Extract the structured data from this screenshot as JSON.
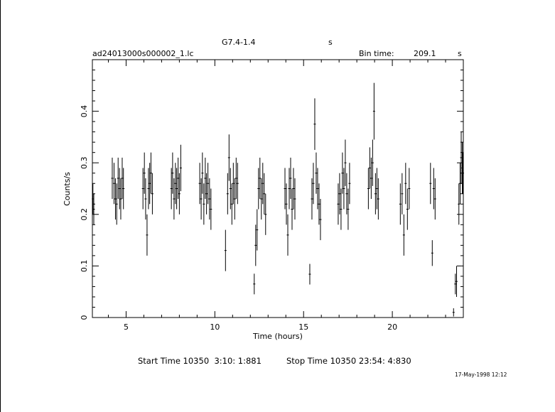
{
  "header": {
    "title": "G7.4-1.4",
    "title_unit": "s",
    "file": "ad24013000s000002_1.lc",
    "bin_label": "Bin time:",
    "bin_value": "209.1",
    "bin_unit": "s"
  },
  "footer": {
    "start": "Start Time 10350  3:10: 1:881",
    "stop": "Stop Time 10350 23:54: 4:830",
    "date": "17-May-1998 12:12"
  },
  "chart_data": {
    "type": "scatter",
    "title": "G7.4-1.4",
    "xlabel": "Time (hours)",
    "ylabel": "Counts/s",
    "xlim": [
      3.1,
      24.0
    ],
    "ylim": [
      0,
      0.5
    ],
    "xticks": [
      5,
      10,
      15,
      20
    ],
    "yticks": [
      0,
      0.1,
      0.2,
      0.3,
      0.4
    ],
    "xtick_labels": [
      "5",
      "10",
      "15",
      "20"
    ],
    "ytick_labels": [
      "0",
      "0.1",
      "0.2",
      "0.3",
      "0.4"
    ],
    "grid": false,
    "error_bars": true,
    "points": [
      {
        "x": 3.13,
        "y": 0.23,
        "err": 0.03
      },
      {
        "x": 3.18,
        "y": 0.21,
        "err": 0.03
      },
      {
        "x": 4.22,
        "y": 0.27,
        "err": 0.04
      },
      {
        "x": 4.32,
        "y": 0.26,
        "err": 0.04
      },
      {
        "x": 4.4,
        "y": 0.23,
        "err": 0.04
      },
      {
        "x": 4.47,
        "y": 0.22,
        "err": 0.04
      },
      {
        "x": 4.55,
        "y": 0.27,
        "err": 0.04
      },
      {
        "x": 4.63,
        "y": 0.25,
        "err": 0.04
      },
      {
        "x": 4.7,
        "y": 0.23,
        "err": 0.04
      },
      {
        "x": 4.78,
        "y": 0.27,
        "err": 0.04
      },
      {
        "x": 4.85,
        "y": 0.25,
        "err": 0.04
      },
      {
        "x": 5.95,
        "y": 0.25,
        "err": 0.04
      },
      {
        "x": 6.03,
        "y": 0.28,
        "err": 0.04
      },
      {
        "x": 6.1,
        "y": 0.23,
        "err": 0.04
      },
      {
        "x": 6.18,
        "y": 0.16,
        "err": 0.04
      },
      {
        "x": 6.26,
        "y": 0.25,
        "err": 0.04
      },
      {
        "x": 6.33,
        "y": 0.26,
        "err": 0.04
      },
      {
        "x": 6.4,
        "y": 0.28,
        "err": 0.04
      },
      {
        "x": 6.48,
        "y": 0.24,
        "err": 0.04
      },
      {
        "x": 7.55,
        "y": 0.25,
        "err": 0.04
      },
      {
        "x": 7.62,
        "y": 0.28,
        "err": 0.04
      },
      {
        "x": 7.7,
        "y": 0.23,
        "err": 0.04
      },
      {
        "x": 7.78,
        "y": 0.26,
        "err": 0.04
      },
      {
        "x": 7.85,
        "y": 0.25,
        "err": 0.04
      },
      {
        "x": 7.93,
        "y": 0.27,
        "err": 0.04
      },
      {
        "x": 8.0,
        "y": 0.24,
        "err": 0.04
      },
      {
        "x": 8.08,
        "y": 0.29,
        "err": 0.045
      },
      {
        "x": 9.15,
        "y": 0.26,
        "err": 0.04
      },
      {
        "x": 9.23,
        "y": 0.23,
        "err": 0.04
      },
      {
        "x": 9.3,
        "y": 0.28,
        "err": 0.04
      },
      {
        "x": 9.38,
        "y": 0.22,
        "err": 0.04
      },
      {
        "x": 9.46,
        "y": 0.27,
        "err": 0.04
      },
      {
        "x": 9.53,
        "y": 0.24,
        "err": 0.04
      },
      {
        "x": 9.61,
        "y": 0.26,
        "err": 0.04
      },
      {
        "x": 9.7,
        "y": 0.23,
        "err": 0.04
      },
      {
        "x": 9.78,
        "y": 0.21,
        "err": 0.04
      },
      {
        "x": 10.6,
        "y": 0.13,
        "err": 0.04
      },
      {
        "x": 10.72,
        "y": 0.24,
        "err": 0.04
      },
      {
        "x": 10.8,
        "y": 0.31,
        "err": 0.045
      },
      {
        "x": 10.88,
        "y": 0.25,
        "err": 0.04
      },
      {
        "x": 10.96,
        "y": 0.22,
        "err": 0.04
      },
      {
        "x": 11.04,
        "y": 0.26,
        "err": 0.04
      },
      {
        "x": 11.12,
        "y": 0.23,
        "err": 0.04
      },
      {
        "x": 11.2,
        "y": 0.27,
        "err": 0.04
      },
      {
        "x": 11.28,
        "y": 0.26,
        "err": 0.04
      },
      {
        "x": 12.22,
        "y": 0.065,
        "err": 0.02
      },
      {
        "x": 12.3,
        "y": 0.14,
        "err": 0.04
      },
      {
        "x": 12.38,
        "y": 0.17,
        "err": 0.04
      },
      {
        "x": 12.46,
        "y": 0.25,
        "err": 0.04
      },
      {
        "x": 12.54,
        "y": 0.27,
        "err": 0.04
      },
      {
        "x": 12.62,
        "y": 0.23,
        "err": 0.04
      },
      {
        "x": 12.7,
        "y": 0.26,
        "err": 0.04
      },
      {
        "x": 12.78,
        "y": 0.24,
        "err": 0.04
      },
      {
        "x": 12.86,
        "y": 0.2,
        "err": 0.04
      },
      {
        "x": 13.95,
        "y": 0.25,
        "err": 0.04
      },
      {
        "x": 14.03,
        "y": 0.22,
        "err": 0.04
      },
      {
        "x": 14.11,
        "y": 0.16,
        "err": 0.04
      },
      {
        "x": 14.19,
        "y": 0.25,
        "err": 0.04
      },
      {
        "x": 14.27,
        "y": 0.27,
        "err": 0.04
      },
      {
        "x": 14.35,
        "y": 0.21,
        "err": 0.04
      },
      {
        "x": 14.43,
        "y": 0.25,
        "err": 0.04
      },
      {
        "x": 14.51,
        "y": 0.23,
        "err": 0.04
      },
      {
        "x": 15.35,
        "y": 0.084,
        "err": 0.02
      },
      {
        "x": 15.47,
        "y": 0.23,
        "err": 0.04
      },
      {
        "x": 15.55,
        "y": 0.26,
        "err": 0.04
      },
      {
        "x": 15.63,
        "y": 0.375,
        "err": 0.05
      },
      {
        "x": 15.71,
        "y": 0.28,
        "err": 0.04
      },
      {
        "x": 15.79,
        "y": 0.25,
        "err": 0.04
      },
      {
        "x": 15.87,
        "y": 0.22,
        "err": 0.04
      },
      {
        "x": 15.95,
        "y": 0.19,
        "err": 0.04
      },
      {
        "x": 16.95,
        "y": 0.22,
        "err": 0.04
      },
      {
        "x": 17.03,
        "y": 0.24,
        "err": 0.04
      },
      {
        "x": 17.11,
        "y": 0.21,
        "err": 0.04
      },
      {
        "x": 17.19,
        "y": 0.28,
        "err": 0.04
      },
      {
        "x": 17.27,
        "y": 0.25,
        "err": 0.04
      },
      {
        "x": 17.35,
        "y": 0.3,
        "err": 0.045
      },
      {
        "x": 17.43,
        "y": 0.24,
        "err": 0.04
      },
      {
        "x": 17.51,
        "y": 0.21,
        "err": 0.04
      },
      {
        "x": 17.59,
        "y": 0.26,
        "err": 0.04
      },
      {
        "x": 18.65,
        "y": 0.25,
        "err": 0.04
      },
      {
        "x": 18.73,
        "y": 0.29,
        "err": 0.04
      },
      {
        "x": 18.81,
        "y": 0.27,
        "err": 0.04
      },
      {
        "x": 18.89,
        "y": 0.3,
        "err": 0.045
      },
      {
        "x": 18.97,
        "y": 0.4,
        "err": 0.055
      },
      {
        "x": 19.05,
        "y": 0.24,
        "err": 0.04
      },
      {
        "x": 19.13,
        "y": 0.25,
        "err": 0.04
      },
      {
        "x": 19.21,
        "y": 0.23,
        "err": 0.04
      },
      {
        "x": 20.45,
        "y": 0.22,
        "err": 0.04
      },
      {
        "x": 20.55,
        "y": 0.24,
        "err": 0.04
      },
      {
        "x": 20.65,
        "y": 0.16,
        "err": 0.04
      },
      {
        "x": 20.75,
        "y": 0.26,
        "err": 0.04
      },
      {
        "x": 20.85,
        "y": 0.21,
        "err": 0.04
      },
      {
        "x": 20.95,
        "y": 0.25,
        "err": 0.04
      },
      {
        "x": 22.15,
        "y": 0.26,
        "err": 0.04
      },
      {
        "x": 22.25,
        "y": 0.125,
        "err": 0.025
      },
      {
        "x": 22.33,
        "y": 0.25,
        "err": 0.04
      },
      {
        "x": 22.41,
        "y": 0.23,
        "err": 0.04
      },
      {
        "x": 23.45,
        "y": 0.01,
        "err": 0.008
      },
      {
        "x": 23.55,
        "y": 0.065,
        "err": 0.02
      },
      {
        "x": 23.62,
        "y": 0.07,
        "err": 0.03
      },
      {
        "x": 23.75,
        "y": 0.22,
        "err": 0.04
      },
      {
        "x": 23.82,
        "y": 0.26,
        "err": 0.04
      },
      {
        "x": 23.88,
        "y": 0.31,
        "err": 0.05
      },
      {
        "x": 23.94,
        "y": 0.29,
        "err": 0.05
      },
      {
        "x": 23.98,
        "y": 0.28,
        "err": 0.04
      }
    ]
  }
}
